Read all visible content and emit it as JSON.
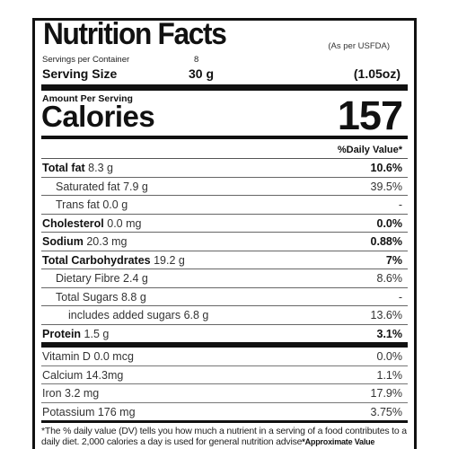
{
  "label": {
    "title": "Nutrition Facts",
    "source_note": "(As per USFDA)",
    "servings_per_container_label": "Servings per Container",
    "servings_per_container_value": "8",
    "serving_size_label": "Serving Size",
    "serving_size_value": "30 g",
    "serving_size_oz": "(1.05oz)",
    "amount_per_serving": "Amount Per Serving",
    "calories_label": "Calories",
    "calories_value": "157",
    "daily_value_header": "%Daily Value*"
  },
  "nutrients": [
    {
      "name": "Total fat",
      "amount": "8.3 g",
      "dv": "10.6%"
    },
    {
      "name": "Saturated fat",
      "amount": "7.9 g",
      "dv": "39.5%"
    },
    {
      "name": "Trans fat",
      "amount": "0.0 g",
      "dv": "-"
    },
    {
      "name": "Cholesterol",
      "amount": "0.0 mg",
      "dv": "0.0%"
    },
    {
      "name": "Sodium",
      "amount": "20.3 mg",
      "dv": "0.88%"
    },
    {
      "name": "Total Carbohydrates",
      "amount": "19.2 g",
      "dv": "7%"
    },
    {
      "name": "Dietary Fibre",
      "amount": "2.4 g",
      "dv": "8.6%"
    },
    {
      "name": "Total Sugars",
      "amount": "8.8 g",
      "dv": "-"
    },
    {
      "name": "includes added sugars",
      "amount": "6.8 g",
      "dv": "13.6%"
    },
    {
      "name": "Protein",
      "amount": "1.5 g",
      "dv": "3.1%"
    }
  ],
  "micronutrients": [
    {
      "name": "Vitamin D",
      "amount": "0.0 mcg",
      "dv": "0.0%"
    },
    {
      "name": "Calcium",
      "amount": "14.3mg",
      "dv": "1.1%"
    },
    {
      "name": "Iron",
      "amount": "3.2 mg",
      "dv": "17.9%"
    },
    {
      "name": "Potassium",
      "amount": "176 mg",
      "dv": "3.75%"
    }
  ],
  "footnote": {
    "text": "*The % daily value (DV) tells you how much a nutrient in a serving of a food contributes to a daily diet. 2,000 calories a day is used for general nutrition advise",
    "approx": "*Approximate Value"
  }
}
